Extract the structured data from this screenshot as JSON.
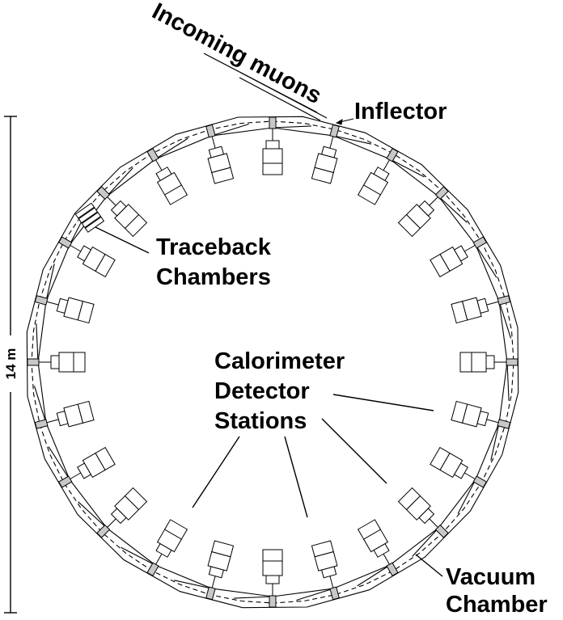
{
  "labels": {
    "incoming_muons": "Incoming muons",
    "inflector": "Inflector",
    "traceback_line1": "Traceback",
    "traceback_line2": "Chambers",
    "calorimeter_line1": "Calorimeter",
    "calorimeter_line2": "Detector",
    "calorimeter_line3": "Stations",
    "vacuum_line1": "Vacuum",
    "vacuum_line2": "Chamber",
    "dimension": "14 m"
  },
  "ring": {
    "calorimeter_station_count": 24
  },
  "colors": {
    "line": "#000000",
    "background": "#ffffff",
    "pmt_fill": "#c8c8c8"
  }
}
